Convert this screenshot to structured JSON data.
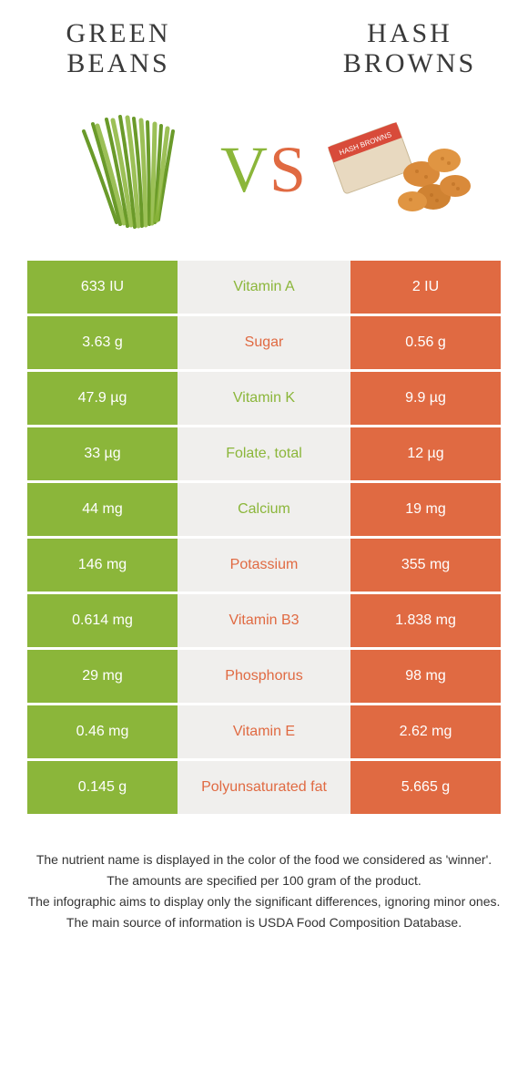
{
  "foods": {
    "left": {
      "name": "Green\nbeans",
      "accent": "#8bb63a"
    },
    "right": {
      "name": "Hash\nbrowns",
      "accent": "#e06a42"
    }
  },
  "vs_label": {
    "v": "V",
    "s": "S"
  },
  "table_bg_mid": "#f0efed",
  "rows": [
    {
      "left": "633 IU",
      "label": "Vitamin A",
      "right": "2 IU",
      "winner": "left"
    },
    {
      "left": "3.63 g",
      "label": "Sugar",
      "right": "0.56 g",
      "winner": "right"
    },
    {
      "left": "47.9 µg",
      "label": "Vitamin K",
      "right": "9.9 µg",
      "winner": "left"
    },
    {
      "left": "33 µg",
      "label": "Folate, total",
      "right": "12 µg",
      "winner": "left"
    },
    {
      "left": "44 mg",
      "label": "Calcium",
      "right": "19 mg",
      "winner": "left"
    },
    {
      "left": "146 mg",
      "label": "Potassium",
      "right": "355 mg",
      "winner": "right"
    },
    {
      "left": "0.614 mg",
      "label": "Vitamin B3",
      "right": "1.838 mg",
      "winner": "right"
    },
    {
      "left": "29 mg",
      "label": "Phosphorus",
      "right": "98 mg",
      "winner": "right"
    },
    {
      "left": "0.46 mg",
      "label": "Vitamin E",
      "right": "2.62 mg",
      "winner": "right"
    },
    {
      "left": "0.145 g",
      "label": "Polyunsaturated fat",
      "right": "5.665 g",
      "winner": "right"
    }
  ],
  "footer": [
    "The nutrient name is displayed in the color of the food we considered as 'winner'.",
    "The amounts are specified per 100 gram of the product.",
    "The infographic aims to display only the significant differences, ignoring minor ones.",
    "The main source of information is USDA Food Composition Database."
  ]
}
